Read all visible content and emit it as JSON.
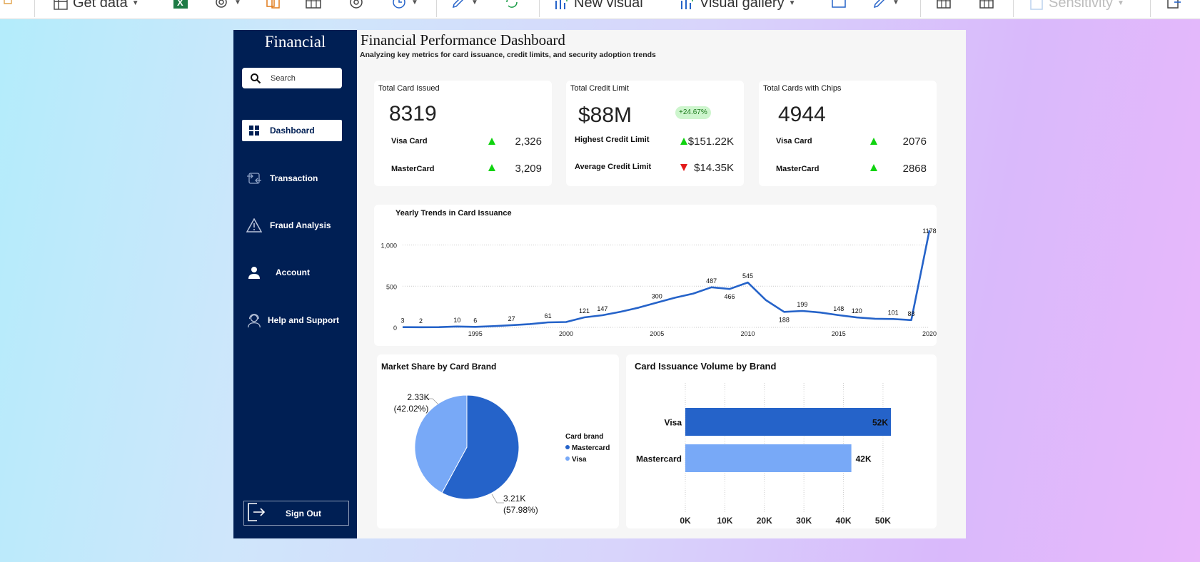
{
  "ribbon": {
    "get_data": "Get data",
    "new_visual": "New visual",
    "visual_gallery": "Visual gallery",
    "sensitivity": "Sensitivity"
  },
  "sidebar": {
    "brand": "Financial",
    "search_placeholder": "Search",
    "items": [
      {
        "label": "Dashboard",
        "icon": "grid-icon"
      },
      {
        "label": "Transaction",
        "icon": "transfer-icon"
      },
      {
        "label": "Fraud Analysis",
        "icon": "warning-icon"
      },
      {
        "label": "Account",
        "icon": "user-icon"
      },
      {
        "label": "Help and Support",
        "icon": "support-agent-icon"
      }
    ],
    "sign_out": "Sign Out"
  },
  "header": {
    "title": "Financial Performance Dashboard",
    "subtitle": "Analyzing key metrics for card issuance, credit limits, and security adoption trends"
  },
  "kpis": {
    "cards_issued": {
      "caption": "Total Card Issued",
      "value": "8319",
      "rows": [
        {
          "label": "Visa Card",
          "value": "2,326",
          "trend": "up"
        },
        {
          "label": "MasterCard",
          "value": "3,209",
          "trend": "up"
        }
      ]
    },
    "credit_limit": {
      "caption": "Total Credit Limit",
      "value": "$88M",
      "badge": "+24.67%",
      "rows": [
        {
          "label": "Highest Credit Limit",
          "value": "$151.22K",
          "trend": "up"
        },
        {
          "label": "Average Credit Limit",
          "value": "$14.35K",
          "trend": "down"
        }
      ]
    },
    "cards_chips": {
      "caption": "Total Cards with Chips",
      "value": "4944",
      "rows": [
        {
          "label": "Visa Card",
          "value": "2076",
          "trend": "up"
        },
        {
          "label": "MasterCard",
          "value": "2868",
          "trend": "up"
        }
      ]
    }
  },
  "colors": {
    "navy": "#001f54",
    "line": "#2563c9",
    "visa": "#78a9f7",
    "mastercard": "#2563c9",
    "up": "#10d310",
    "down": "#e31b1b"
  },
  "chart_data": [
    {
      "type": "line",
      "title": "Yearly Trends in Card Issuance",
      "x": [
        1991,
        1992,
        1993,
        1994,
        1995,
        1996,
        1997,
        1998,
        1999,
        2000,
        2001,
        2002,
        2003,
        2004,
        2005,
        2006,
        2007,
        2008,
        2009,
        2010,
        2011,
        2012,
        2013,
        2014,
        2015,
        2016,
        2017,
        2018,
        2019,
        2020
      ],
      "y": [
        3,
        2,
        3,
        10,
        6,
        15,
        27,
        40,
        61,
        65,
        121,
        147,
        190,
        240,
        300,
        360,
        410,
        487,
        466,
        545,
        330,
        188,
        199,
        180,
        148,
        120,
        105,
        101,
        88,
        1178
      ],
      "point_labels": {
        "1991": "3",
        "1992": "2",
        "1994": "10",
        "1995": "6",
        "1997": "27",
        "1999": "61",
        "2001": "121",
        "2002": "147",
        "2005": "300",
        "2008": "487",
        "2009": "466",
        "2010": "545",
        "2012": "188",
        "2013": "199",
        "2015": "148",
        "2016": "120",
        "2018": "101",
        "2019": "88",
        "2020": "1178"
      },
      "y_ticks": [
        "0",
        "500",
        "1,000"
      ],
      "x_ticks": [
        "1995",
        "2000",
        "2005",
        "2010",
        "2015",
        "2020"
      ],
      "ylim": [
        0,
        1200
      ],
      "grid": true
    },
    {
      "type": "pie",
      "title": "Market Share by Card Brand",
      "legend_title": "Card brand",
      "slices": [
        {
          "name": "Mastercard",
          "value": 3.21,
          "label": "3.21K",
          "pct": "(57.98%)"
        },
        {
          "name": "Visa",
          "value": 2.33,
          "label": "2.33K",
          "pct": "(42.02%)"
        }
      ]
    },
    {
      "type": "bar",
      "title": "Card Issuance Volume by Brand",
      "categories": [
        "Visa",
        "Mastercard"
      ],
      "values": [
        52,
        42
      ],
      "value_labels": [
        "52K",
        "42K"
      ],
      "x_ticks": [
        "0K",
        "10K",
        "20K",
        "30K",
        "40K",
        "50K"
      ],
      "xlim": [
        0,
        52
      ]
    }
  ]
}
